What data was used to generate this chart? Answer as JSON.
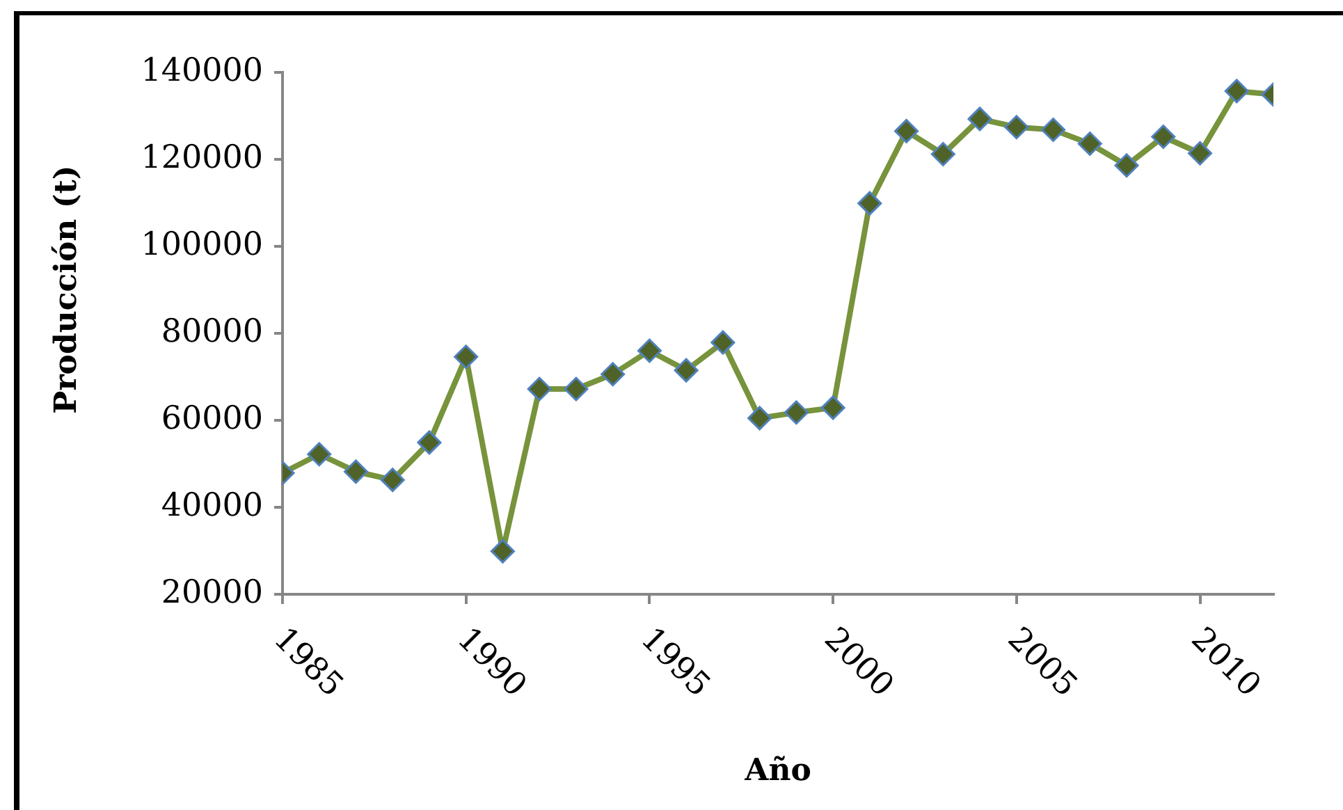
{
  "chart_data": {
    "type": "line",
    "xlabel": "Año",
    "ylabel": "Producción (t)",
    "x": [
      1985,
      1986,
      1987,
      1988,
      1989,
      1990,
      1991,
      1992,
      1993,
      1994,
      1995,
      1996,
      1997,
      1998,
      1999,
      2000,
      2001,
      2002,
      2003,
      2004,
      2005,
      2006,
      2007,
      2008,
      2009,
      2010,
      2011,
      2012
    ],
    "series": [
      {
        "color": "#77933c",
        "values": [
          47900,
          52200,
          48200,
          46300,
          54900,
          74600,
          29900,
          67200,
          67200,
          70600,
          76000,
          71500,
          77900,
          60500,
          61800,
          62900,
          109900,
          126500,
          121200,
          129300,
          127400,
          126800,
          123600,
          118600,
          125200,
          121400,
          135700,
          134900
        ]
      }
    ],
    "xlim": [
      1985,
      2012
    ],
    "xticks": [
      1985,
      1990,
      1995,
      2000,
      2005,
      2010
    ],
    "ylim": [
      20000,
      140000
    ],
    "yticks": [
      20000,
      40000,
      60000,
      80000,
      100000,
      120000,
      140000
    ],
    "marker": "diamond",
    "line_style": "solid"
  }
}
